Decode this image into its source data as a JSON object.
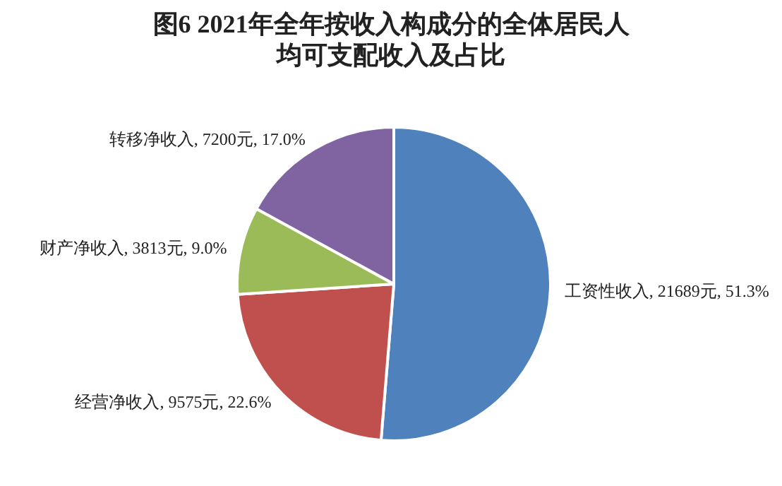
{
  "chart_data": {
    "type": "pie",
    "title": "图6 2021年全年按收入构成分的全体居民人均可支配收入及占比",
    "categories": [
      "工资性收入",
      "经营净收入",
      "财产净收入",
      "转移净收入"
    ],
    "values": [
      21689,
      9575,
      3813,
      7200
    ],
    "value_labels": [
      "21689元, 51.3%",
      "9575元, 22.6%",
      "3813元, 9.0%",
      "7200元, 17.0%"
    ],
    "colors": [
      "#4f81bd",
      "#c0504d",
      "#9bbb59",
      "#8064a2"
    ]
  }
}
